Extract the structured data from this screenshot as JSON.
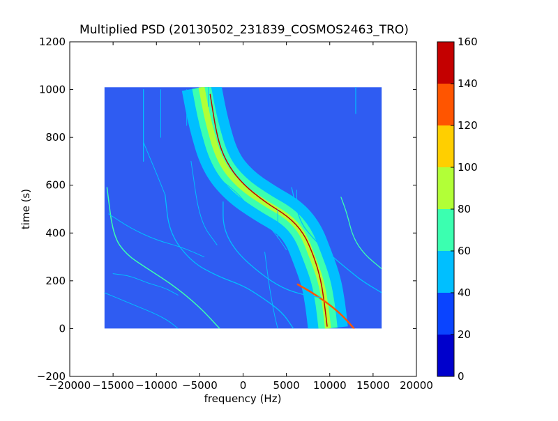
{
  "chart_data": {
    "type": "heatmap",
    "title": "Multiplied PSD (20130502_231839_COSMOS2463_TRO)",
    "xlabel": "frequency (Hz)",
    "ylabel": "time (s)",
    "xlim": [
      -20000,
      20000
    ],
    "ylim": [
      -200,
      1200
    ],
    "x_ticks": [
      -20000,
      -15000,
      -10000,
      -5000,
      0,
      5000,
      10000,
      15000,
      20000
    ],
    "x_tick_labels": [
      "−20000",
      "−15000",
      "−10000",
      "−5000",
      "0",
      "5000",
      "10000",
      "15000",
      "20000"
    ],
    "y_ticks": [
      -200,
      0,
      200,
      400,
      600,
      800,
      1000,
      1200
    ],
    "y_tick_labels": [
      "−200",
      "0",
      "200",
      "400",
      "600",
      "800",
      "1000",
      "1200"
    ],
    "data_extent": {
      "x": [
        -16000,
        16000
      ],
      "y": [
        0,
        1010
      ]
    },
    "background_value": 30,
    "colorbar": {
      "levels": [
        0,
        20,
        40,
        60,
        80,
        100,
        120,
        140,
        160
      ],
      "tick_labels": [
        "0",
        "20",
        "40",
        "60",
        "80",
        "100",
        "120",
        "140",
        "160"
      ],
      "colors": [
        "#0000cc",
        "#0a44ff",
        "#00bfff",
        "#3bffb0",
        "#b2ff37",
        "#ffcf00",
        "#ff5500",
        "#c40000"
      ]
    },
    "features": [
      {
        "kind": "band",
        "value": 50,
        "halfwidth_hz": 2300,
        "path": [
          [
            -4800,
            1010
          ],
          [
            -4000,
            860
          ],
          [
            -2700,
            700
          ],
          [
            -500,
            600
          ],
          [
            2500,
            525
          ],
          [
            5200,
            470
          ],
          [
            6900,
            400
          ],
          [
            8000,
            300
          ],
          [
            9000,
            200
          ],
          [
            9500,
            100
          ],
          [
            9800,
            0
          ]
        ]
      },
      {
        "kind": "band",
        "value": 70,
        "halfwidth_hz": 1100,
        "path": [
          [
            -4800,
            1010
          ],
          [
            -4000,
            860
          ],
          [
            -2700,
            700
          ],
          [
            -500,
            600
          ],
          [
            2500,
            525
          ],
          [
            5200,
            470
          ],
          [
            6900,
            400
          ],
          [
            8000,
            300
          ],
          [
            9000,
            200
          ],
          [
            9500,
            100
          ],
          [
            9800,
            0
          ]
        ]
      },
      {
        "kind": "band",
        "value": 90,
        "halfwidth_hz": 350,
        "path": [
          [
            -4800,
            1010
          ],
          [
            -4000,
            860
          ],
          [
            -2700,
            700
          ],
          [
            -500,
            600
          ],
          [
            2500,
            525
          ],
          [
            5200,
            470
          ],
          [
            6900,
            400
          ],
          [
            8000,
            300
          ],
          [
            9000,
            200
          ],
          [
            9500,
            100
          ],
          [
            9800,
            0
          ]
        ]
      },
      {
        "kind": "line",
        "value": 160,
        "width": 1.5,
        "path": [
          [
            -3800,
            980
          ],
          [
            -3000,
            800
          ],
          [
            -2000,
            700
          ],
          [
            -200,
            610
          ],
          [
            2500,
            530
          ],
          [
            5200,
            470
          ],
          [
            7000,
            400
          ],
          [
            8200,
            300
          ],
          [
            9000,
            200
          ],
          [
            9400,
            100
          ],
          [
            9700,
            10
          ]
        ]
      },
      {
        "kind": "line",
        "value": 130,
        "width": 2.5,
        "path": [
          [
            6300,
            185
          ],
          [
            8000,
            150
          ],
          [
            10000,
            100
          ],
          [
            11600,
            50
          ],
          [
            12800,
            0
          ]
        ]
      },
      {
        "kind": "line",
        "value": 60,
        "width": 1.5,
        "path": [
          [
            -15700,
            590
          ],
          [
            -15000,
            390
          ],
          [
            -13500,
            310
          ],
          [
            -11000,
            250
          ],
          [
            -8000,
            180
          ],
          [
            -5000,
            90
          ],
          [
            -2700,
            0
          ]
        ]
      },
      {
        "kind": "line",
        "value": 50,
        "width": 1.3,
        "path": [
          [
            -9000,
            560
          ],
          [
            -8500,
            400
          ],
          [
            -6000,
            280
          ],
          [
            -3000,
            220
          ],
          [
            0,
            180
          ],
          [
            2000,
            135
          ],
          [
            4500,
            70
          ],
          [
            5800,
            0
          ]
        ]
      },
      {
        "kind": "line",
        "value": 55,
        "width": 1.3,
        "path": [
          [
            -2300,
            530
          ],
          [
            -2300,
            420
          ],
          [
            -800,
            320
          ],
          [
            2000,
            230
          ],
          [
            4500,
            170
          ],
          [
            7000,
            140
          ],
          [
            9000,
            130
          ]
        ]
      },
      {
        "kind": "line",
        "value": 55,
        "width": 1.3,
        "path": [
          [
            5600,
            590
          ],
          [
            6500,
            450
          ],
          [
            8000,
            380
          ],
          [
            10000,
            310
          ],
          [
            12000,
            250
          ],
          [
            13700,
            200
          ],
          [
            16000,
            150
          ]
        ]
      },
      {
        "kind": "line",
        "value": 60,
        "width": 1.3,
        "path": [
          [
            11300,
            550
          ],
          [
            12000,
            480
          ],
          [
            12700,
            380
          ],
          [
            14000,
            310
          ],
          [
            16000,
            250
          ]
        ]
      },
      {
        "kind": "line",
        "value": 50,
        "width": 1.0,
        "path": [
          [
            -16000,
            150
          ],
          [
            -14000,
            120
          ],
          [
            -12000,
            90
          ],
          [
            -10000,
            60
          ],
          [
            -8500,
            30
          ],
          [
            -7500,
            0
          ]
        ]
      },
      {
        "kind": "line",
        "value": 45,
        "width": 1.0,
        "path": [
          [
            -15000,
            230
          ],
          [
            -13000,
            220
          ],
          [
            -11000,
            190
          ],
          [
            -9000,
            170
          ],
          [
            -7500,
            140
          ]
        ]
      },
      {
        "kind": "line",
        "value": 40,
        "width": 1.0,
        "path": [
          [
            -15500,
            480
          ],
          [
            -13000,
            420
          ],
          [
            -10000,
            370
          ],
          [
            -7000,
            340
          ],
          [
            -4500,
            300
          ]
        ]
      },
      {
        "kind": "line",
        "value": 40,
        "width": 1.0,
        "path": [
          [
            -2500,
            620
          ],
          [
            -400,
            560
          ],
          [
            1500,
            470
          ],
          [
            3300,
            420
          ],
          [
            5000,
            330
          ]
        ]
      },
      {
        "kind": "line",
        "value": 45,
        "width": 1.0,
        "path": [
          [
            -11500,
            780
          ],
          [
            -10000,
            650
          ],
          [
            -9000,
            560
          ]
        ]
      },
      {
        "kind": "line",
        "value": 40,
        "width": 1.0,
        "path": [
          [
            2500,
            320
          ],
          [
            3000,
            180
          ],
          [
            3600,
            60
          ],
          [
            4000,
            0
          ]
        ]
      },
      {
        "kind": "line",
        "value": 45,
        "width": 1.2,
        "path": [
          [
            -11500,
            1000
          ],
          [
            -11500,
            700
          ]
        ]
      },
      {
        "kind": "line",
        "value": 40,
        "width": 1.0,
        "path": [
          [
            -9500,
            1000
          ],
          [
            -9500,
            800
          ]
        ]
      },
      {
        "kind": "line",
        "value": 40,
        "width": 1.0,
        "path": [
          [
            -6500,
            1000
          ],
          [
            -6500,
            850
          ]
        ]
      },
      {
        "kind": "line",
        "value": 40,
        "width": 1.0,
        "path": [
          [
            -4000,
            1010
          ],
          [
            -4000,
            930
          ]
        ]
      },
      {
        "kind": "line",
        "value": 40,
        "width": 1.0,
        "path": [
          [
            4000,
            500
          ],
          [
            4000,
            380
          ]
        ]
      },
      {
        "kind": "line",
        "value": 45,
        "width": 1.0,
        "path": [
          [
            6200,
            580
          ],
          [
            6200,
            500
          ]
        ]
      },
      {
        "kind": "line",
        "value": 45,
        "width": 1.2,
        "path": [
          [
            13000,
            1010
          ],
          [
            13000,
            900
          ]
        ]
      },
      {
        "kind": "line",
        "value": 40,
        "width": 1.0,
        "path": [
          [
            -6000,
            700
          ],
          [
            -5000,
            450
          ],
          [
            -3000,
            350
          ]
        ]
      }
    ]
  }
}
